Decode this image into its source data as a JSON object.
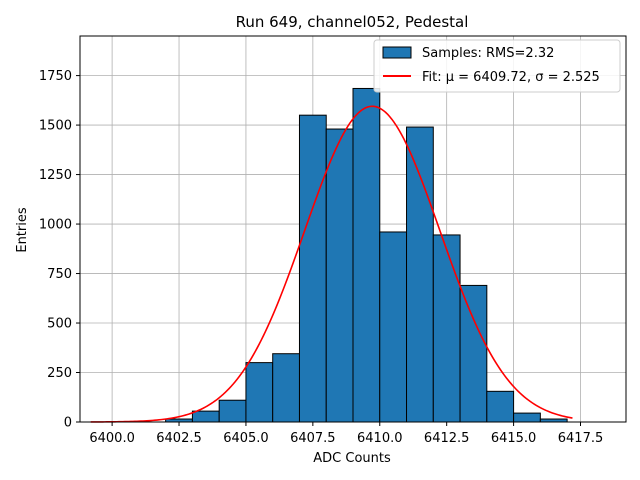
{
  "chart_data": {
    "type": "bar",
    "title": "Run 649, channel052, Pedestal",
    "xlabel": "ADC Counts",
    "ylabel": "Entries",
    "xlim": [
      6398.8,
      6419.2
    ],
    "ylim": [
      0,
      1950
    ],
    "grid": true,
    "legend_placement": "top-right",
    "bin_width": 1,
    "bins": [
      {
        "x": 6402.5,
        "value": 15
      },
      {
        "x": 6403.5,
        "value": 55
      },
      {
        "x": 6404.5,
        "value": 110
      },
      {
        "x": 6405.5,
        "value": 300
      },
      {
        "x": 6406.5,
        "value": 345
      },
      {
        "x": 6407.5,
        "value": 1550
      },
      {
        "x": 6408.5,
        "value": 1480
      },
      {
        "x": 6409.5,
        "value": 1685
      },
      {
        "x": 6410.5,
        "value": 960
      },
      {
        "x": 6411.5,
        "value": 1490
      },
      {
        "x": 6412.5,
        "value": 945
      },
      {
        "x": 6413.5,
        "value": 690
      },
      {
        "x": 6414.5,
        "value": 155
      },
      {
        "x": 6415.5,
        "value": 45
      },
      {
        "x": 6416.5,
        "value": 15
      }
    ],
    "fit": {
      "mu": 6409.72,
      "sigma": 2.525,
      "amplitude": 1595,
      "x_range": [
        6399.2,
        6417.2
      ]
    },
    "x_ticks": [
      {
        "v": 6400.0,
        "label": "6400.0"
      },
      {
        "v": 6402.5,
        "label": "6402.5"
      },
      {
        "v": 6405.0,
        "label": "6405.0"
      },
      {
        "v": 6407.5,
        "label": "6407.5"
      },
      {
        "v": 6410.0,
        "label": "6410.0"
      },
      {
        "v": 6412.5,
        "label": "6412.5"
      },
      {
        "v": 6415.0,
        "label": "6415.0"
      },
      {
        "v": 6417.5,
        "label": "6417.5"
      }
    ],
    "y_ticks": [
      {
        "v": 0,
        "label": "0"
      },
      {
        "v": 250,
        "label": "250"
      },
      {
        "v": 500,
        "label": "500"
      },
      {
        "v": 750,
        "label": "750"
      },
      {
        "v": 1000,
        "label": "1000"
      },
      {
        "v": 1250,
        "label": "1250"
      },
      {
        "v": 1500,
        "label": "1500"
      },
      {
        "v": 1750,
        "label": "1750"
      }
    ],
    "series": [
      {
        "name": "Samples: RMS=2.32",
        "color": "#1f77b4"
      },
      {
        "name": "Fit: μ = 6409.72, σ = 2.525",
        "color": "#ff0000"
      }
    ]
  }
}
